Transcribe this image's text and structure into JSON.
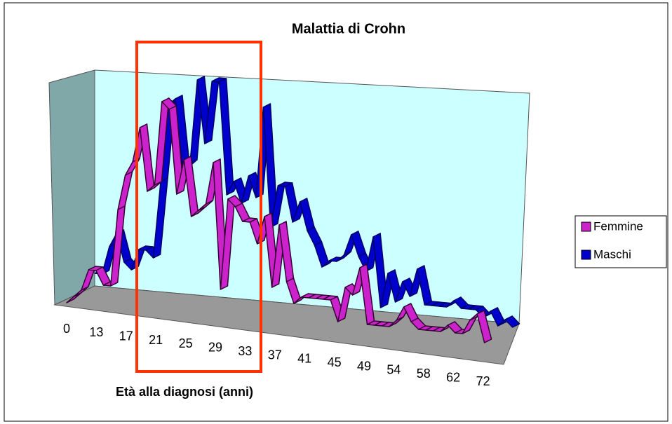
{
  "chart_data": {
    "type": "line3d",
    "title": "Malattia  di Crohn",
    "x_label": "Età alla diagnosi (anni)",
    "categories": [
      0,
      null,
      null,
      null,
      13,
      null,
      null,
      null,
      17,
      null,
      null,
      null,
      21,
      null,
      null,
      null,
      25,
      null,
      null,
      null,
      29,
      null,
      null,
      null,
      33,
      null,
      null,
      null,
      37,
      null,
      null,
      null,
      41,
      null,
      null,
      null,
      45,
      null,
      null,
      null,
      49,
      null,
      null,
      null,
      54,
      null,
      null,
      null,
      58,
      null,
      null,
      null,
      62,
      null,
      null,
      null,
      72,
      null
    ],
    "series": [
      {
        "name": "Femmine",
        "color": "#cc22cc",
        "values": [
          0,
          1,
          2,
          5,
          5,
          3,
          3,
          14,
          19,
          21,
          26,
          17,
          18,
          30,
          29,
          17,
          22,
          14,
          15,
          16,
          22,
          4,
          17,
          16,
          14,
          14,
          11,
          15,
          5,
          14,
          6,
          3,
          4,
          4,
          4,
          4,
          4,
          1,
          6,
          5,
          9,
          1,
          1,
          1,
          1,
          2,
          4,
          2,
          1,
          1,
          1,
          1,
          2,
          1,
          1,
          3,
          4,
          0
        ]
      },
      {
        "name": "Maschi",
        "color": "#0000cc",
        "values": [
          2,
          2,
          6,
          8,
          4,
          3,
          6,
          6,
          5,
          16,
          27,
          28,
          18,
          19,
          31,
          22,
          31,
          31,
          15,
          17,
          14,
          18,
          15,
          28,
          11,
          17,
          17,
          12,
          15,
          11,
          9,
          6,
          7,
          7,
          8,
          11,
          8,
          6,
          11,
          1,
          6,
          2,
          5,
          3,
          7,
          2,
          2,
          2,
          2,
          3,
          2,
          2,
          2,
          1,
          2,
          0,
          1,
          0
        ]
      }
    ]
  }
}
